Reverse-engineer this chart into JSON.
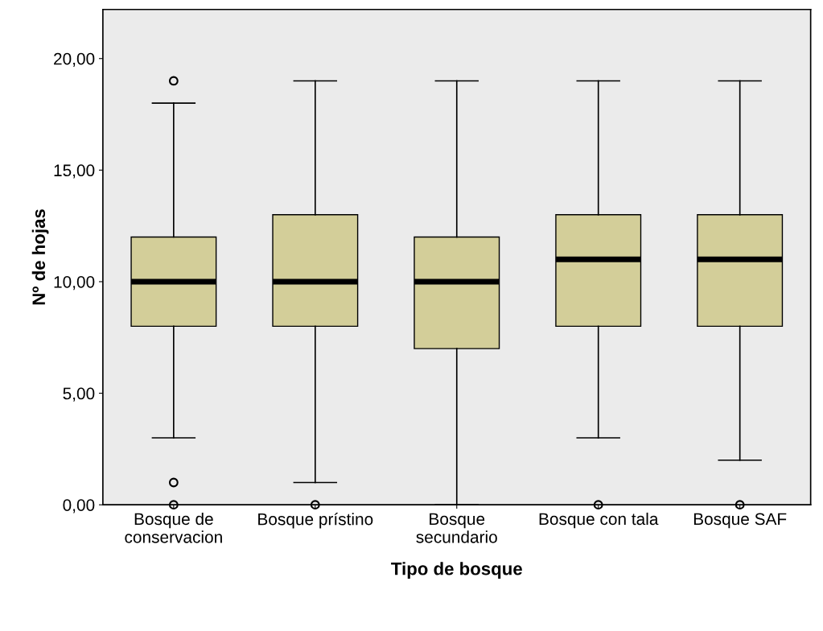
{
  "chart_data": {
    "type": "box",
    "xlabel": "Tipo de bosque",
    "ylabel": "Nº de hojas",
    "categories": [
      "Bosque de\nconservacion",
      "Bosque prístino",
      "Bosque\nsecundario",
      "Bosque con tala",
      "Bosque SAF"
    ],
    "boxes": [
      {
        "low": 3,
        "q1": 8,
        "median": 10,
        "q3": 12,
        "high": 18,
        "outliers": [
          19,
          1,
          0
        ]
      },
      {
        "low": 1,
        "q1": 8,
        "median": 10,
        "q3": 13,
        "high": 19,
        "outliers": [
          0
        ]
      },
      {
        "low": 0,
        "q1": 7,
        "median": 10,
        "q3": 12,
        "high": 19
      },
      {
        "low": 3,
        "q1": 8,
        "median": 11,
        "q3": 13,
        "high": 19,
        "outliers": [
          0
        ]
      },
      {
        "low": 2,
        "q1": 8,
        "median": 11,
        "q3": 13,
        "high": 19,
        "outliers": [
          0
        ]
      }
    ],
    "color": "#d3ce99",
    "ylim": [
      0,
      22.2
    ],
    "yticks": [
      {
        "value": 0,
        "label": "0,00"
      },
      {
        "value": 5,
        "label": "5,00"
      },
      {
        "value": 10,
        "label": "10,00"
      },
      {
        "value": 15,
        "label": "15,00"
      },
      {
        "value": 20,
        "label": "20,00"
      }
    ],
    "grid": false
  }
}
